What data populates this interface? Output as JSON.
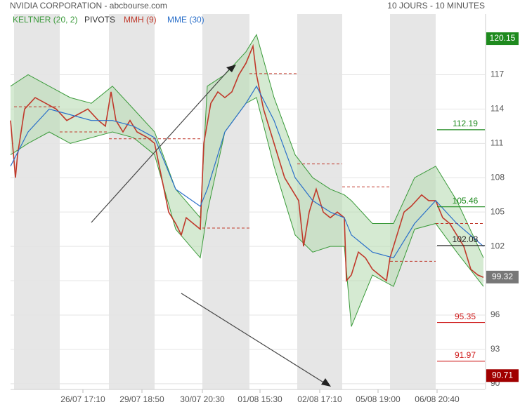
{
  "chart_data": {
    "type": "line",
    "title": "NVIDIA CORPORATION - abcbourse.com",
    "subtitle": "10 JOURS - 10 MINUTES",
    "xlim": [
      0,
      675
    ],
    "ylim": [
      89.5,
      122.3
    ],
    "xticks": [
      {
        "value": 103,
        "label": "26/07 17:10"
      },
      {
        "value": 187,
        "label": "29/07 18:50"
      },
      {
        "value": 273,
        "label": "30/07 20:30"
      },
      {
        "value": 355,
        "label": "01/08 15:30"
      },
      {
        "value": 440,
        "label": "02/08 17:10"
      },
      {
        "value": 523,
        "label": "05/08 19:00"
      },
      {
        "value": 607,
        "label": "06/08 20:40"
      }
    ],
    "yticks": [
      90,
      93,
      96,
      99,
      102,
      105,
      108,
      111,
      114,
      117
    ],
    "grid": true,
    "keltner": {
      "name": "KELTNER (20, 2)",
      "color": "#3a9a3a",
      "fill": "#b9dcb4",
      "x": [
        0,
        25,
        55,
        85,
        115,
        145,
        175,
        205,
        235,
        270,
        280,
        305,
        335,
        350,
        375,
        405,
        430,
        455,
        475,
        485,
        515,
        545,
        575,
        605,
        635,
        673
      ],
      "upper": [
        116,
        117,
        116,
        115,
        114.5,
        116,
        114,
        112,
        107,
        104.5,
        116,
        117,
        119,
        120.5,
        115,
        110,
        108,
        107,
        106.5,
        106,
        104,
        104,
        108,
        109,
        106,
        101
      ],
      "lower": [
        110,
        111,
        112,
        111,
        111.5,
        112,
        111.5,
        110,
        103.5,
        101,
        105,
        112,
        114.5,
        115,
        109,
        103,
        101.5,
        102,
        102,
        95,
        99.5,
        98.5,
        103.5,
        104,
        101.5,
        98.5
      ]
    },
    "series": [
      {
        "name": "MMH (9)",
        "color": "#c0392b",
        "x": [
          0,
          7,
          10,
          20,
          35,
          50,
          65,
          80,
          95,
          110,
          125,
          135,
          143,
          150,
          160,
          170,
          180,
          195,
          205,
          215,
          225,
          235,
          243,
          250,
          260,
          270,
          275,
          285,
          295,
          305,
          315,
          325,
          335,
          345,
          350,
          360,
          370,
          380,
          390,
          400,
          410,
          417,
          425,
          435,
          445,
          455,
          465,
          475,
          478,
          485,
          495,
          505,
          515,
          525,
          535,
          540,
          550,
          560,
          570,
          585,
          595,
          605,
          615,
          625,
          635,
          645,
          655,
          665,
          673
        ],
        "values": [
          113,
          108,
          110,
          114,
          115,
          114.5,
          114,
          113,
          113.5,
          114,
          113,
          112.5,
          115.5,
          113,
          112,
          113,
          112,
          111.5,
          111,
          108,
          105,
          104,
          103,
          104.5,
          104,
          103.5,
          111,
          114.5,
          115.5,
          115,
          115.5,
          117,
          118,
          119.5,
          117,
          114,
          112,
          110,
          108,
          107,
          106,
          102,
          105,
          107,
          105,
          104.5,
          105,
          104.5,
          99,
          99.5,
          101.5,
          101,
          100,
          99.5,
          99,
          101,
          103,
          105,
          105.5,
          106.5,
          106,
          106,
          104.5,
          104,
          103,
          102,
          100,
          99.5,
          99.3
        ]
      },
      {
        "name": "MME (30)",
        "color": "#2a6fc9",
        "x": [
          0,
          25,
          55,
          85,
          115,
          145,
          175,
          205,
          235,
          270,
          280,
          305,
          335,
          350,
          375,
          405,
          430,
          455,
          475,
          485,
          515,
          545,
          575,
          605,
          635,
          673
        ],
        "values": [
          109,
          112,
          114,
          113.5,
          113,
          113,
          112.5,
          111.5,
          107,
          105.5,
          107,
          112,
          114.5,
          116,
          113,
          108,
          106,
          105,
          104.5,
          103,
          101.5,
          101,
          104,
          106,
          104,
          102
        ]
      }
    ],
    "pivots": {
      "name": "PIVOTS",
      "color": "#c0392b",
      "start": [
        5,
        70,
        140,
        273,
        340,
        408,
        472,
        540,
        605
      ],
      "end": [
        70,
        140,
        273,
        340,
        408,
        472,
        540,
        605,
        673
      ],
      "values": [
        114.2,
        112,
        111.4,
        103.6,
        117.1,
        109.2,
        107.2,
        100.7,
        104
      ]
    },
    "levels": [
      {
        "value": 120.15,
        "color": "#1e8a1e",
        "style": "box"
      },
      {
        "value": 112.19,
        "color": "#1e8a1e",
        "style": "line"
      },
      {
        "value": 105.46,
        "color": "#1e8a1e",
        "style": "line"
      },
      {
        "value": 102.08,
        "color": "#222222",
        "style": "line"
      },
      {
        "value": 99.32,
        "color": "#777777",
        "style": "box"
      },
      {
        "value": 95.35,
        "color": "#d02020",
        "style": "line"
      },
      {
        "value": 91.97,
        "color": "#d02020",
        "style": "line"
      },
      {
        "value": 90.71,
        "color": "#a00000",
        "style": "box"
      }
    ]
  }
}
